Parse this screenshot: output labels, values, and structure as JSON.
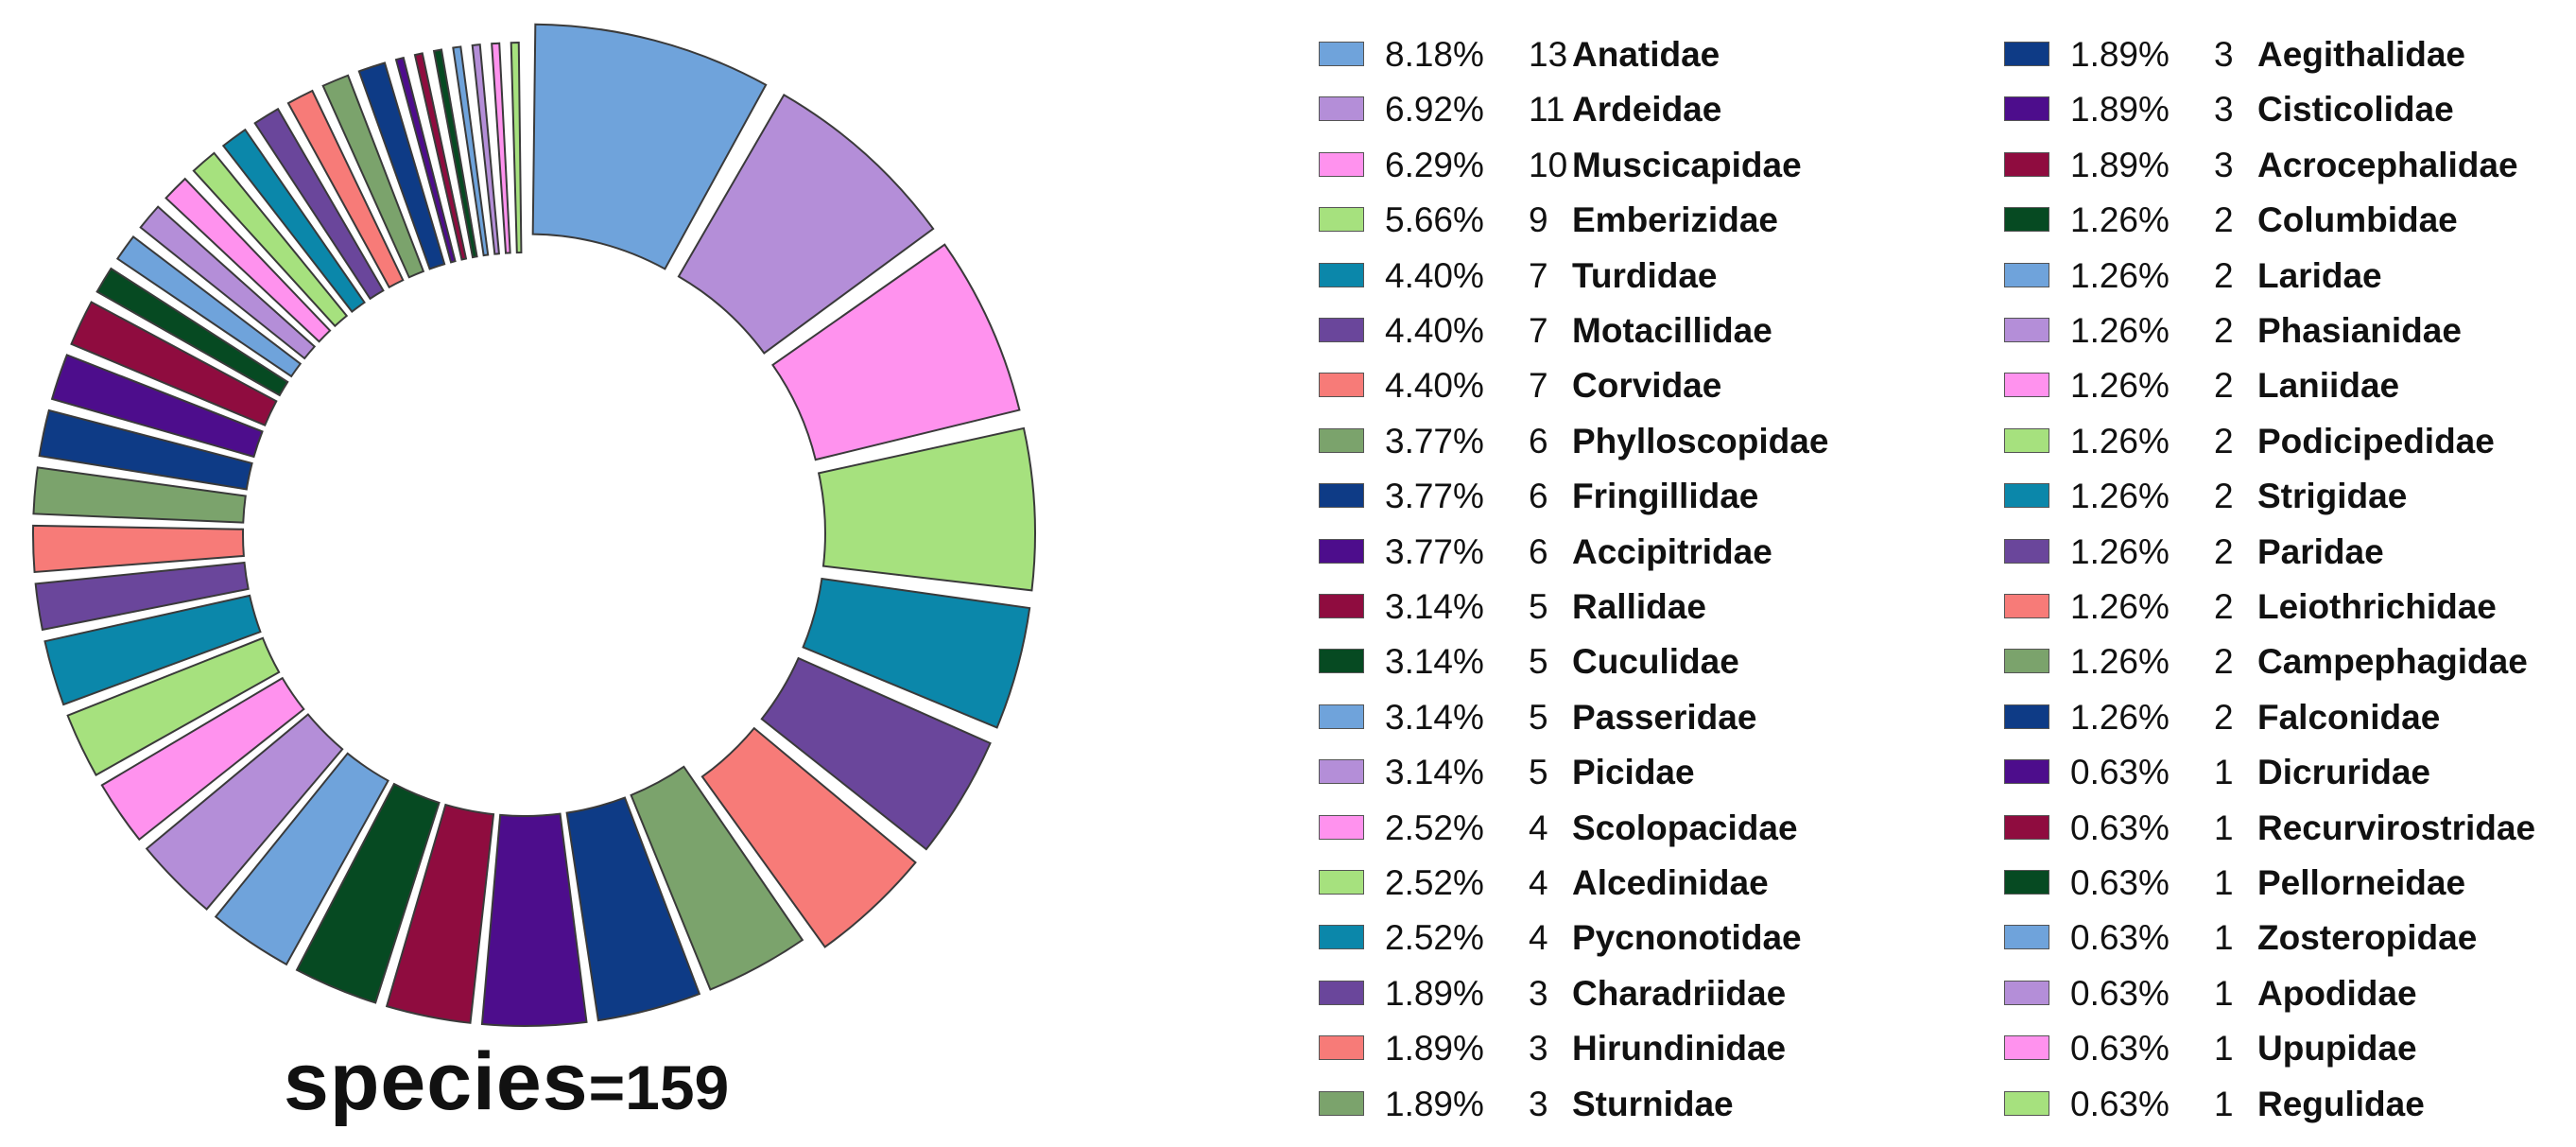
{
  "chart_data": {
    "type": "pie",
    "title": "",
    "center_label": {
      "word": "species",
      "equals": "=",
      "total": "159"
    },
    "slices": [
      {
        "pct": "8.18%",
        "count": 13,
        "name": "Anatidae",
        "color": "#6fa3db"
      },
      {
        "pct": "6.92%",
        "count": 11,
        "name": "Ardeidae",
        "color": "#b48ed8"
      },
      {
        "pct": "6.29%",
        "count": 10,
        "name": "Muscicapidae",
        "color": "#ff92ee"
      },
      {
        "pct": "5.66%",
        "count": 9,
        "name": "Emberizidae",
        "color": "#a6e17e"
      },
      {
        "pct": "4.40%",
        "count": 7,
        "name": "Turdidae",
        "color": "#0b87aa"
      },
      {
        "pct": "4.40%",
        "count": 7,
        "name": "Motacillidae",
        "color": "#6a469b"
      },
      {
        "pct": "4.40%",
        "count": 7,
        "name": "Corvidae",
        "color": "#f77b78"
      },
      {
        "pct": "3.77%",
        "count": 6,
        "name": "Phylloscopidae",
        "color": "#7ba36c"
      },
      {
        "pct": "3.77%",
        "count": 6,
        "name": "Fringillidae",
        "color": "#0e3b86"
      },
      {
        "pct": "3.77%",
        "count": 6,
        "name": "Accipitridae",
        "color": "#4d0d8c"
      },
      {
        "pct": "3.14%",
        "count": 5,
        "name": "Rallidae",
        "color": "#8f0c3f"
      },
      {
        "pct": "3.14%",
        "count": 5,
        "name": "Cuculidae",
        "color": "#064a22"
      },
      {
        "pct": "3.14%",
        "count": 5,
        "name": "Passeridae",
        "color": "#6fa3db"
      },
      {
        "pct": "3.14%",
        "count": 5,
        "name": "Picidae",
        "color": "#b48ed8"
      },
      {
        "pct": "2.52%",
        "count": 4,
        "name": "Scolopacidae",
        "color": "#ff92ee"
      },
      {
        "pct": "2.52%",
        "count": 4,
        "name": "Alcedinidae",
        "color": "#a6e17e"
      },
      {
        "pct": "2.52%",
        "count": 4,
        "name": "Pycnonotidae",
        "color": "#0b87aa"
      },
      {
        "pct": "1.89%",
        "count": 3,
        "name": "Charadriidae",
        "color": "#6a469b"
      },
      {
        "pct": "1.89%",
        "count": 3,
        "name": "Hirundinidae",
        "color": "#f77b78"
      },
      {
        "pct": "1.89%",
        "count": 3,
        "name": "Sturnidae",
        "color": "#7ba36c"
      },
      {
        "pct": "1.89%",
        "count": 3,
        "name": "Aegithalidae",
        "color": "#0e3b86"
      },
      {
        "pct": "1.89%",
        "count": 3,
        "name": "Cisticolidae",
        "color": "#4d0d8c"
      },
      {
        "pct": "1.89%",
        "count": 3,
        "name": "Acrocephalidae",
        "color": "#8f0c3f"
      },
      {
        "pct": "1.26%",
        "count": 2,
        "name": "Columbidae",
        "color": "#064a22"
      },
      {
        "pct": "1.26%",
        "count": 2,
        "name": "Laridae",
        "color": "#6fa3db"
      },
      {
        "pct": "1.26%",
        "count": 2,
        "name": "Phasianidae",
        "color": "#b48ed8"
      },
      {
        "pct": "1.26%",
        "count": 2,
        "name": "Laniidae",
        "color": "#ff92ee"
      },
      {
        "pct": "1.26%",
        "count": 2,
        "name": "Podicipedidae",
        "color": "#a6e17e"
      },
      {
        "pct": "1.26%",
        "count": 2,
        "name": "Strigidae",
        "color": "#0b87aa"
      },
      {
        "pct": "1.26%",
        "count": 2,
        "name": "Paridae",
        "color": "#6a469b"
      },
      {
        "pct": "1.26%",
        "count": 2,
        "name": "Leiothrichidae",
        "color": "#f77b78"
      },
      {
        "pct": "1.26%",
        "count": 2,
        "name": "Campephagidae",
        "color": "#7ba36c"
      },
      {
        "pct": "1.26%",
        "count": 2,
        "name": "Falconidae",
        "color": "#0e3b86"
      },
      {
        "pct": "0.63%",
        "count": 1,
        "name": "Dicruridae",
        "color": "#4d0d8c"
      },
      {
        "pct": "0.63%",
        "count": 1,
        "name": "Recurvirostridae",
        "color": "#8f0c3f"
      },
      {
        "pct": "0.63%",
        "count": 1,
        "name": "Pellorneidae",
        "color": "#064a22"
      },
      {
        "pct": "0.63%",
        "count": 1,
        "name": "Zosteropidae",
        "color": "#6fa3db"
      },
      {
        "pct": "0.63%",
        "count": 1,
        "name": "Apodidae",
        "color": "#b48ed8"
      },
      {
        "pct": "0.63%",
        "count": 1,
        "name": "Upupidae",
        "color": "#ff92ee"
      },
      {
        "pct": "0.63%",
        "count": 1,
        "name": "Regulidae",
        "color": "#a6e17e"
      }
    ],
    "legend_placement": "right, two columns"
  }
}
